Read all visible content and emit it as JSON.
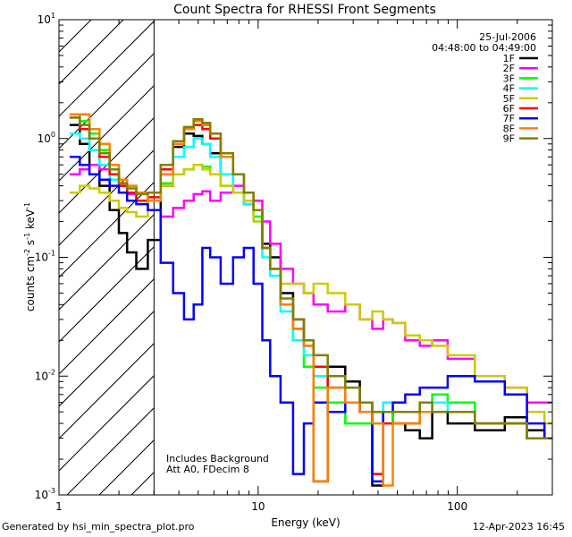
{
  "chart_data": {
    "type": "line",
    "title": "Count Spectra for RHESSI Front Segments",
    "xlabel": "Energy (keV)",
    "ylabel_parts": [
      "counts cm",
      "-2",
      " s",
      "-1",
      " keV",
      "-1"
    ],
    "x_scale": "log",
    "y_scale": "log",
    "xlim": [
      1.0,
      300.0
    ],
    "ylim": [
      0.001,
      10.0
    ],
    "x_ticks": [
      {
        "value": 1,
        "label": "1"
      },
      {
        "value": 10,
        "label": "10"
      },
      {
        "value": 100,
        "label": "100"
      }
    ],
    "y_ticks": [
      {
        "value": 0.001,
        "base": "10",
        "exp": "-3"
      },
      {
        "value": 0.01,
        "base": "10",
        "exp": "-2"
      },
      {
        "value": 0.1,
        "base": "10",
        "exp": "-1"
      },
      {
        "value": 1,
        "base": "10",
        "exp": "0"
      },
      {
        "value": 10,
        "base": "10",
        "exp": "1"
      }
    ],
    "excluded_region": {
      "from": 1.0,
      "to": 3.0
    },
    "date": "25-Jul-2006",
    "time_range": "04:48:00 to 04:49:00",
    "annotations": [
      "Includes Background",
      "Att A0, FDecim 8"
    ],
    "legend_position": "top-right",
    "series": [
      {
        "name": "1F",
        "color": "#000000",
        "energies": [
          1.2,
          1.35,
          1.5,
          1.7,
          1.9,
          2.1,
          2.3,
          2.6,
          3.0,
          3.5,
          4.0,
          4.5,
          5.0,
          5.5,
          6.0,
          7.0,
          8.0,
          9.0,
          10.0,
          11.0,
          12.0,
          14.0,
          16.0,
          18.0,
          20.0,
          25.0,
          30.0,
          35.0,
          40.0,
          45.0,
          50.0,
          60.0,
          70.0,
          80.0,
          100.0,
          150.0,
          200.0,
          250.0,
          300.0
        ],
        "counts": [
          1.3,
          0.9,
          0.6,
          0.4,
          0.25,
          0.16,
          0.11,
          0.08,
          0.14,
          0.4,
          0.85,
          1.1,
          1.05,
          0.9,
          0.75,
          0.5,
          0.35,
          0.28,
          0.25,
          0.13,
          0.1,
          0.05,
          0.03,
          0.02,
          0.0013,
          0.012,
          0.009,
          0.006,
          0.0012,
          0.005,
          0.004,
          0.0035,
          0.003,
          0.005,
          0.004,
          0.0035,
          0.0045,
          0.0035,
          0.003
        ]
      },
      {
        "name": "2F",
        "color": "#ff00ff",
        "energies": [
          1.2,
          1.35,
          1.5,
          1.7,
          1.9,
          2.1,
          2.3,
          2.6,
          3.0,
          3.5,
          4.0,
          4.5,
          5.0,
          5.5,
          6.0,
          7.0,
          8.0,
          9.0,
          10.0,
          11.0,
          12.0,
          14.0,
          16.0,
          18.0,
          20.0,
          25.0,
          30.0,
          35.0,
          40.0,
          45.0,
          50.0,
          60.0,
          70.0,
          80.0,
          100.0,
          150.0,
          200.0,
          250.0,
          300.0
        ],
        "counts": [
          0.5,
          0.55,
          0.6,
          0.55,
          0.5,
          0.4,
          0.34,
          0.3,
          0.25,
          0.22,
          0.26,
          0.3,
          0.34,
          0.36,
          0.3,
          0.35,
          0.4,
          0.35,
          0.3,
          0.2,
          0.13,
          0.08,
          0.06,
          0.05,
          0.04,
          0.035,
          0.04,
          0.03,
          0.025,
          0.03,
          0.028,
          0.02,
          0.018,
          0.02,
          0.014,
          0.01,
          0.008,
          0.006,
          0.006
        ]
      },
      {
        "name": "3F",
        "color": "#00ff00",
        "energies": [
          1.2,
          1.35,
          1.5,
          1.7,
          1.9,
          2.1,
          2.3,
          2.6,
          3.0,
          3.5,
          4.0,
          4.5,
          5.0,
          5.5,
          6.0,
          7.0,
          8.0,
          9.0,
          10.0,
          11.0,
          12.0,
          14.0,
          16.0,
          18.0,
          20.0,
          25.0,
          30.0,
          35.0,
          40.0,
          45.0,
          50.0,
          60.0,
          70.0,
          80.0,
          100.0,
          150.0,
          200.0,
          250.0,
          300.0
        ],
        "counts": [
          1.6,
          1.4,
          1.1,
          0.8,
          0.55,
          0.45,
          0.4,
          0.35,
          0.3,
          0.42,
          0.5,
          0.55,
          0.6,
          0.58,
          0.5,
          0.4,
          0.35,
          0.3,
          0.22,
          0.12,
          0.08,
          0.04,
          0.02,
          0.012,
          0.008,
          0.006,
          0.004,
          0.004,
          0.004,
          0.005,
          0.004,
          0.004,
          0.006,
          0.007,
          0.006,
          0.004,
          0.004,
          0.003,
          0.003
        ]
      },
      {
        "name": "4F",
        "color": "#00ffff",
        "energies": [
          1.2,
          1.35,
          1.5,
          1.7,
          1.9,
          2.1,
          2.3,
          2.6,
          3.0,
          3.5,
          4.0,
          4.5,
          5.0,
          5.5,
          6.0,
          7.0,
          8.0,
          9.0,
          10.0,
          11.0,
          12.0,
          14.0,
          16.0,
          18.0,
          20.0,
          25.0,
          30.0,
          35.0,
          40.0,
          45.0,
          50.0,
          60.0,
          70.0,
          80.0,
          100.0,
          150.0,
          200.0,
          250.0,
          300.0
        ],
        "counts": [
          1.1,
          1.0,
          0.8,
          0.6,
          0.45,
          0.35,
          0.3,
          0.3,
          0.3,
          0.5,
          0.7,
          0.85,
          1.0,
          0.9,
          0.7,
          0.5,
          0.35,
          0.28,
          0.2,
          0.1,
          0.07,
          0.035,
          0.02,
          0.015,
          0.01,
          0.008,
          0.006,
          0.006,
          0.005,
          0.006,
          0.005,
          0.005,
          0.005,
          0.006,
          0.005,
          0.004,
          0.004,
          0.003,
          0.003
        ]
      },
      {
        "name": "5F",
        "color": "#cccc00",
        "energies": [
          1.2,
          1.35,
          1.5,
          1.7,
          1.9,
          2.1,
          2.3,
          2.6,
          3.0,
          3.5,
          4.0,
          4.5,
          5.0,
          5.5,
          6.0,
          7.0,
          8.0,
          9.0,
          10.0,
          11.0,
          12.0,
          14.0,
          16.0,
          18.0,
          20.0,
          25.0,
          30.0,
          35.0,
          40.0,
          45.0,
          50.0,
          60.0,
          70.0,
          80.0,
          100.0,
          150.0,
          200.0,
          250.0,
          300.0
        ],
        "counts": [
          0.35,
          0.4,
          0.38,
          0.35,
          0.3,
          0.26,
          0.24,
          0.22,
          0.3,
          0.4,
          0.5,
          0.55,
          0.6,
          0.55,
          0.5,
          0.4,
          0.35,
          0.3,
          0.2,
          0.12,
          0.08,
          0.06,
          0.06,
          0.05,
          0.06,
          0.05,
          0.04,
          0.03,
          0.035,
          0.03,
          0.028,
          0.022,
          0.02,
          0.018,
          0.015,
          0.01,
          0.008,
          0.005,
          0.004
        ]
      },
      {
        "name": "6F",
        "color": "#ff0000",
        "energies": [
          1.2,
          1.35,
          1.5,
          1.7,
          1.9,
          2.1,
          2.3,
          2.6,
          3.0,
          3.5,
          4.0,
          4.5,
          5.0,
          5.5,
          6.0,
          7.0,
          8.0,
          9.0,
          10.0,
          11.0,
          12.0,
          14.0,
          16.0,
          18.0,
          20.0,
          25.0,
          30.0,
          35.0,
          40.0,
          45.0,
          50.0,
          60.0,
          70.0,
          80.0,
          100.0,
          150.0,
          200.0,
          250.0,
          300.0
        ],
        "counts": [
          1.5,
          1.2,
          1.0,
          0.7,
          0.5,
          0.4,
          0.35,
          0.3,
          0.32,
          0.55,
          0.9,
          1.2,
          1.3,
          1.2,
          1.0,
          0.7,
          0.5,
          0.35,
          0.25,
          0.12,
          0.08,
          0.04,
          0.025,
          0.018,
          0.012,
          0.008,
          0.006,
          0.005,
          0.0015,
          0.004,
          0.004,
          0.004,
          0.005,
          0.005,
          0.005,
          0.004,
          0.004,
          0.003,
          0.003
        ]
      },
      {
        "name": "7F",
        "color": "#0000ff",
        "energies": [
          1.2,
          1.35,
          1.5,
          1.7,
          1.9,
          2.1,
          2.3,
          2.6,
          3.0,
          3.5,
          4.0,
          4.5,
          5.0,
          5.5,
          6.0,
          7.0,
          8.0,
          9.0,
          10.0,
          11.0,
          12.0,
          14.0,
          16.0,
          18.0,
          20.0,
          25.0,
          30.0,
          35.0,
          40.0,
          45.0,
          50.0,
          60.0,
          70.0,
          80.0,
          100.0,
          150.0,
          200.0,
          250.0,
          300.0
        ],
        "counts": [
          0.7,
          0.6,
          0.5,
          0.45,
          0.4,
          0.35,
          0.3,
          0.28,
          0.25,
          0.09,
          0.05,
          0.03,
          0.04,
          0.12,
          0.1,
          0.06,
          0.1,
          0.12,
          0.06,
          0.02,
          0.01,
          0.006,
          0.0015,
          0.004,
          0.006,
          0.005,
          0.006,
          0.005,
          0.0013,
          0.005,
          0.006,
          0.007,
          0.008,
          0.008,
          0.01,
          0.009,
          0.007,
          0.004,
          0.003
        ]
      },
      {
        "name": "8F",
        "color": "#ff8000",
        "energies": [
          1.2,
          1.35,
          1.5,
          1.7,
          1.9,
          2.1,
          2.3,
          2.6,
          3.0,
          3.5,
          4.0,
          4.5,
          5.0,
          5.5,
          6.0,
          7.0,
          8.0,
          9.0,
          10.0,
          11.0,
          12.0,
          14.0,
          16.0,
          18.0,
          20.0,
          25.0,
          30.0,
          35.0,
          40.0,
          45.0,
          50.0,
          60.0,
          70.0,
          80.0,
          100.0,
          150.0,
          200.0,
          250.0,
          300.0
        ],
        "counts": [
          1.6,
          1.6,
          1.2,
          0.9,
          0.6,
          0.45,
          0.4,
          0.35,
          0.3,
          0.5,
          0.9,
          1.2,
          1.4,
          1.3,
          1.1,
          0.7,
          0.5,
          0.35,
          0.25,
          0.12,
          0.08,
          0.04,
          0.025,
          0.018,
          0.0013,
          0.008,
          0.006,
          0.005,
          0.004,
          0.0012,
          0.004,
          0.004,
          0.005,
          0.005,
          0.005,
          0.004,
          0.004,
          0.003,
          0.003
        ]
      },
      {
        "name": "9F",
        "color": "#808000",
        "energies": [
          1.2,
          1.35,
          1.5,
          1.7,
          1.9,
          2.1,
          2.3,
          2.6,
          3.0,
          3.5,
          4.0,
          4.5,
          5.0,
          5.5,
          6.0,
          7.0,
          8.0,
          9.0,
          10.0,
          11.0,
          12.0,
          14.0,
          16.0,
          18.0,
          20.0,
          25.0,
          30.0,
          35.0,
          40.0,
          45.0,
          50.0,
          60.0,
          70.0,
          80.0,
          100.0,
          150.0,
          200.0,
          250.0,
          300.0
        ],
        "counts": [
          1.5,
          1.3,
          1.0,
          0.75,
          0.55,
          0.42,
          0.38,
          0.34,
          0.35,
          0.6,
          0.95,
          1.25,
          1.45,
          1.35,
          1.1,
          0.75,
          0.5,
          0.35,
          0.25,
          0.12,
          0.08,
          0.045,
          0.03,
          0.02,
          0.015,
          0.01,
          0.008,
          0.006,
          0.005,
          0.005,
          0.005,
          0.005,
          0.006,
          0.005,
          0.005,
          0.004,
          0.004,
          0.003,
          0.003
        ]
      }
    ]
  },
  "footer": {
    "left": "Generated by hsi_min_spectra_plot.pro",
    "right": "12-Apr-2023 16:45"
  }
}
